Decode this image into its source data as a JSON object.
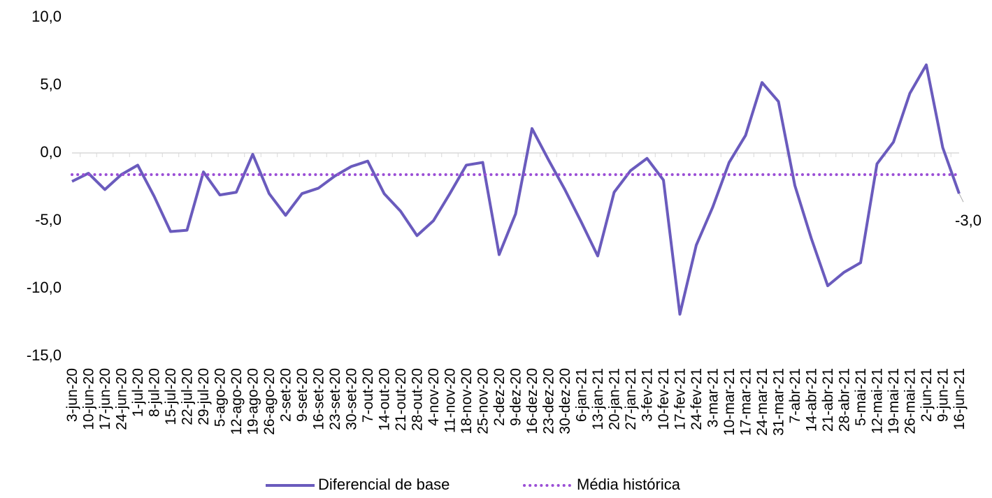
{
  "chart_data": {
    "type": "line",
    "categories": [
      "3-jun-20",
      "10-jun-20",
      "17-jun-20",
      "24-jun-20",
      "1-jul-20",
      "8-jul-20",
      "15-jul-20",
      "22-jul-20",
      "29-jul-20",
      "5-ago-20",
      "12-ago-20",
      "19-ago-20",
      "26-ago-20",
      "2-set-20",
      "9-set-20",
      "16-set-20",
      "23-set-20",
      "30-set-20",
      "7-out-20",
      "14-out-20",
      "21-out-20",
      "28-out-20",
      "4-nov-20",
      "11-nov-20",
      "18-nov-20",
      "25-nov-20",
      "2-dez-20",
      "9-dez-20",
      "16-dez-20",
      "23-dez-20",
      "30-dez-20",
      "6-jan-21",
      "13-jan-21",
      "20-jan-21",
      "27-jan-21",
      "3-fev-21",
      "10-fev-21",
      "17-fev-21",
      "24-fev-21",
      "3-mar-21",
      "10-mar-21",
      "17-mar-21",
      "24-mar-21",
      "31-mar-21",
      "7-abr-21",
      "14-abr-21",
      "21-abr-21",
      "28-abr-21",
      "5-mai-21",
      "12-mai-21",
      "19-mai-21",
      "26-mai-21",
      "2-jun-21",
      "9-jun-21",
      "16-jun-21"
    ],
    "series": [
      {
        "name": "Diferencial de base",
        "color": "#6a5bbd",
        "style": "solid",
        "values": [
          -2.1,
          -1.5,
          -2.7,
          -1.6,
          -0.9,
          -3.2,
          -5.8,
          -5.7,
          -1.4,
          -3.1,
          -2.9,
          -0.1,
          -3.0,
          -4.6,
          -3.0,
          -2.6,
          -1.7,
          -1.0,
          -0.6,
          -3.0,
          -4.3,
          -6.1,
          -5.0,
          -3.0,
          -0.9,
          -0.7,
          -7.5,
          -4.5,
          1.8,
          -0.5,
          -2.7,
          -5.1,
          -7.6,
          -2.9,
          -1.3,
          -0.4,
          -2.0,
          -11.9,
          -6.8,
          -4.0,
          -0.7,
          1.3,
          5.2,
          3.8,
          -2.4,
          -6.3,
          -9.8,
          -8.8,
          -8.1,
          -0.8,
          0.8,
          4.4,
          6.5,
          0.4,
          -3.0
        ],
        "value_labels": [
          null,
          null,
          null,
          null,
          null,
          null,
          null,
          null,
          null,
          null,
          null,
          null,
          null,
          null,
          null,
          null,
          null,
          null,
          null,
          null,
          null,
          null,
          null,
          null,
          null,
          null,
          null,
          null,
          null,
          null,
          null,
          null,
          null,
          null,
          null,
          null,
          null,
          null,
          null,
          null,
          null,
          null,
          null,
          null,
          null,
          null,
          null,
          null,
          null,
          null,
          null,
          null,
          null,
          null,
          "-3,0"
        ]
      },
      {
        "name": "Média histórica",
        "color": "#9b4fd6",
        "style": "dotted",
        "values": [
          -1.6,
          -1.6,
          -1.6,
          -1.6,
          -1.6,
          -1.6,
          -1.6,
          -1.6,
          -1.6,
          -1.6,
          -1.6,
          -1.6,
          -1.6,
          -1.6,
          -1.6,
          -1.6,
          -1.6,
          -1.6,
          -1.6,
          -1.6,
          -1.6,
          -1.6,
          -1.6,
          -1.6,
          -1.6,
          -1.6,
          -1.6,
          -1.6,
          -1.6,
          -1.6,
          -1.6,
          -1.6,
          -1.6,
          -1.6,
          -1.6,
          -1.6,
          -1.6,
          -1.6,
          -1.6,
          -1.6,
          -1.6,
          -1.6,
          -1.6,
          -1.6,
          -1.6,
          -1.6,
          -1.6,
          -1.6,
          -1.6,
          -1.6,
          -1.6,
          -1.6,
          -1.6,
          -1.6,
          -1.6
        ]
      }
    ],
    "ylim": [
      -15,
      10
    ],
    "yticks": [
      {
        "value": -15,
        "label": "-15,0"
      },
      {
        "value": -10,
        "label": "-10,0"
      },
      {
        "value": -5,
        "label": "-5,0"
      },
      {
        "value": 0,
        "label": "0,0"
      },
      {
        "value": 5,
        "label": "5,0"
      },
      {
        "value": 10,
        "label": "10,0"
      }
    ],
    "grid": false,
    "legend": "bottom"
  }
}
